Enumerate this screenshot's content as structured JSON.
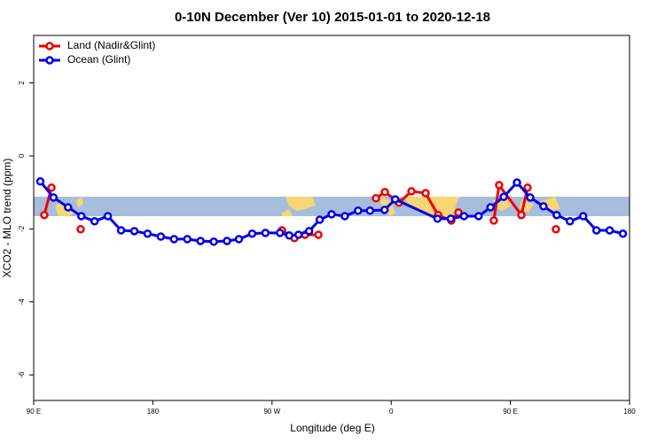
{
  "chart_data": {
    "type": "line",
    "title": "0-10N December (Ver 10)   2015-01-01 to 2020-12-18",
    "x_label": "Longitude (deg E)",
    "y_label": "XCO2 - MLO trend (ppm)",
    "xlim": [
      90,
      540
    ],
    "ylim": [
      -6.7,
      3.3
    ],
    "xticks": [
      {
        "value": 90,
        "label": "90 E"
      },
      180,
      {
        "value": 270,
        "label": "90 W"
      },
      {
        "value": 360,
        "label": "0"
      },
      {
        "value": 450,
        "label": "90 E"
      },
      {
        "value": 540,
        "label": "180"
      }
    ],
    "yticks": [
      -6,
      -4,
      -2,
      0,
      2
    ],
    "legend": "top-left",
    "series": [
      {
        "name": "Land (Nadir&Glint)",
        "color": "#ee0000",
        "x": [
          98,
          103.4,
          null,
          125.5,
          null,
          277.5,
          286.9,
          294.9,
          305,
          null,
          348.5,
          355.2,
          365.9,
          375.3,
          386,
          395.4,
          405.4,
          410.8,
          null,
          437.5,
          441.5,
          458.3,
          463,
          null,
          484.4
        ],
        "values": [
          -1.62,
          -0.87,
          null,
          -2.01,
          null,
          -2.04,
          -2.25,
          -2.16,
          -2.16,
          null,
          -1.16,
          -0.99,
          -1.28,
          -0.97,
          -1.02,
          -1.62,
          -1.77,
          -1.55,
          null,
          -1.77,
          -0.8,
          -1.62,
          -0.87,
          null,
          -2.01
        ]
      },
      {
        "name": "Ocean (Glint)",
        "color": "#0000ee",
        "x": [
          95,
          105,
          116,
          126,
          136,
          146,
          156,
          166,
          176,
          186,
          196,
          206,
          216,
          226,
          236,
          245,
          255,
          265,
          276,
          283,
          290,
          298,
          306,
          315,
          325,
          335,
          344,
          355,
          363,
          395,
          405,
          415,
          426,
          435,
          445,
          455,
          465,
          475,
          485,
          495,
          505,
          515,
          525,
          535
        ],
        "values": [
          -0.7,
          -1.14,
          -1.41,
          -1.65,
          -1.79,
          -1.65,
          -2.04,
          -2.06,
          -2.13,
          -2.21,
          -2.28,
          -2.28,
          -2.33,
          -2.35,
          -2.33,
          -2.28,
          -2.13,
          -2.11,
          -2.11,
          -2.18,
          -2.16,
          -2.06,
          -1.75,
          -1.6,
          -1.65,
          -1.5,
          -1.5,
          -1.48,
          -1.19,
          -1.72,
          -1.72,
          -1.65,
          -1.65,
          -1.41,
          -1.12,
          -0.73,
          -1.14,
          -1.38,
          -1.62,
          -1.79,
          -1.65,
          -2.04,
          -2.04,
          -2.13
        ]
      }
    ]
  }
}
